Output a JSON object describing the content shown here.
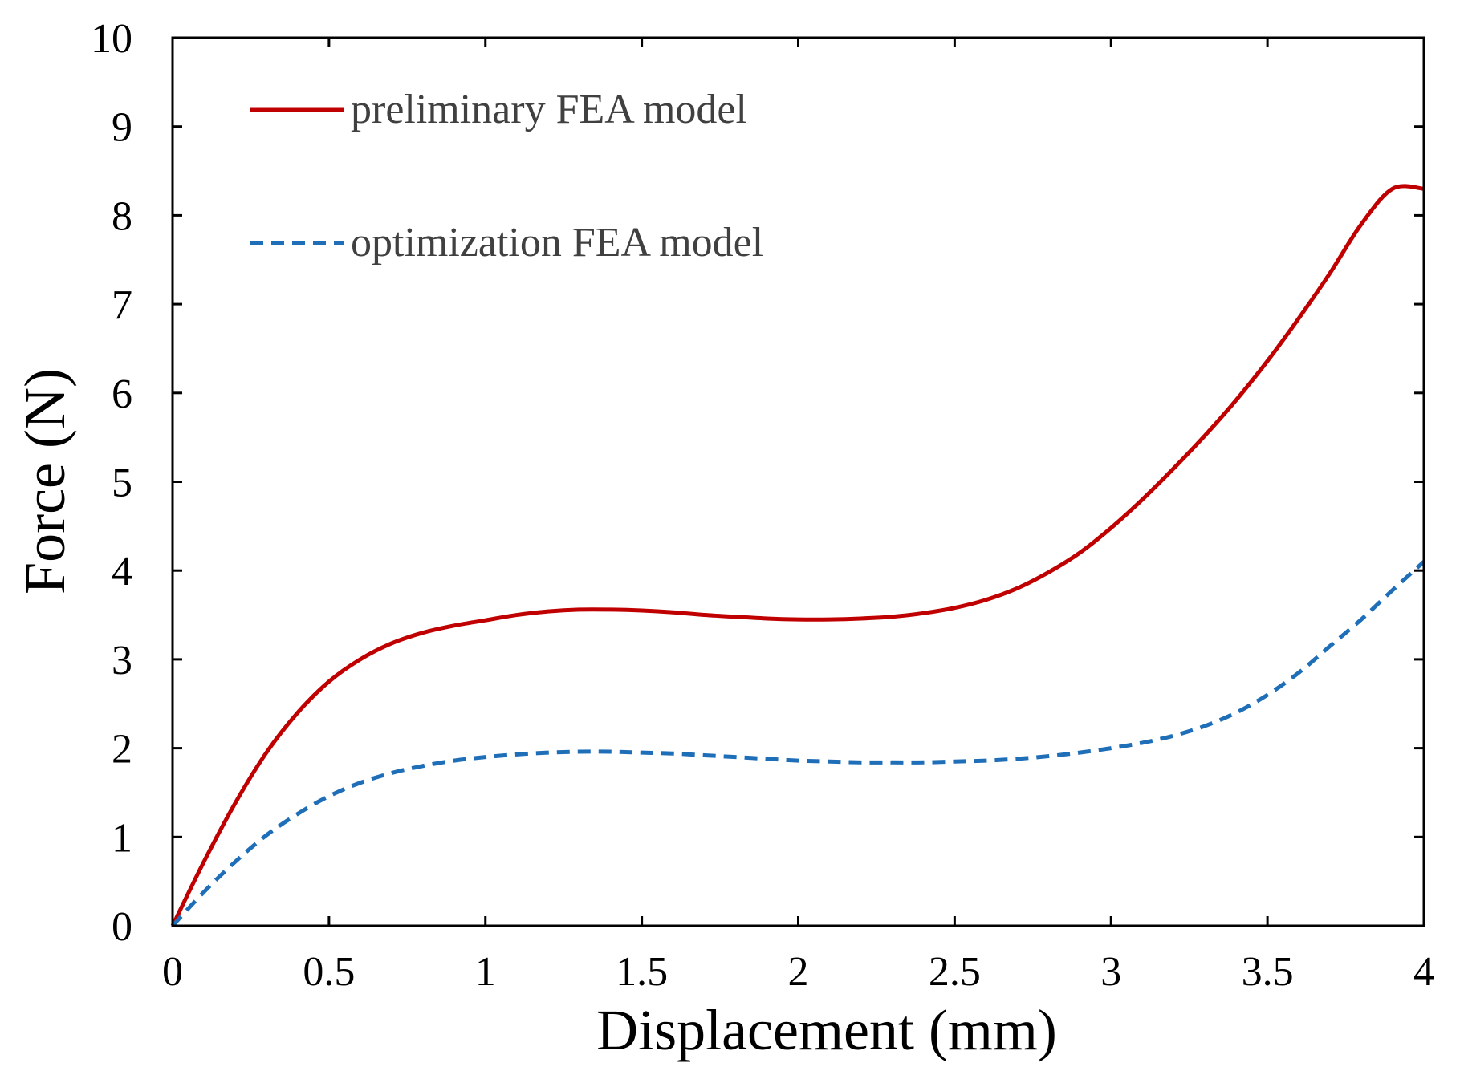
{
  "chart_data": {
    "type": "line",
    "title": "",
    "xlabel": "Displacement (mm)",
    "ylabel": "Force (N)",
    "xlim": [
      0,
      4
    ],
    "ylim": [
      0,
      10
    ],
    "xticks": [
      0,
      0.5,
      1,
      1.5,
      2,
      2.5,
      3,
      3.5,
      4
    ],
    "xtick_labels": [
      "0",
      "0.5",
      "1",
      "1.5",
      "2",
      "2.5",
      "3",
      "3.5",
      "4"
    ],
    "yticks": [
      0,
      1,
      2,
      3,
      4,
      5,
      6,
      7,
      8,
      9,
      10
    ],
    "ytick_labels": [
      "0",
      "1",
      "2",
      "3",
      "4",
      "5",
      "6",
      "7",
      "8",
      "9",
      "10"
    ],
    "grid": false,
    "legend_position": "top-left",
    "series": [
      {
        "name": "preliminary FEA model",
        "color": "#C00000",
        "style": "solid",
        "x": [
          0,
          0.1,
          0.2,
          0.3,
          0.4,
          0.5,
          0.6,
          0.7,
          0.8,
          0.9,
          1.0,
          1.1,
          1.2,
          1.3,
          1.4,
          1.5,
          1.6,
          1.7,
          1.8,
          1.9,
          2.0,
          2.1,
          2.2,
          2.3,
          2.4,
          2.5,
          2.6,
          2.7,
          2.8,
          2.9,
          3.0,
          3.1,
          3.2,
          3.3,
          3.4,
          3.5,
          3.6,
          3.7,
          3.8,
          3.9,
          4.0
        ],
        "y": [
          0,
          0.72,
          1.38,
          1.95,
          2.4,
          2.75,
          3.0,
          3.18,
          3.3,
          3.38,
          3.44,
          3.5,
          3.54,
          3.56,
          3.56,
          3.55,
          3.53,
          3.5,
          3.48,
          3.46,
          3.45,
          3.45,
          3.46,
          3.48,
          3.52,
          3.58,
          3.67,
          3.8,
          3.98,
          4.2,
          4.48,
          4.8,
          5.15,
          5.52,
          5.92,
          6.36,
          6.84,
          7.35,
          7.9,
          8.3,
          8.3
        ]
      },
      {
        "name": "optimization FEA model",
        "color": "#1F6EB8",
        "style": "dashed",
        "x": [
          0,
          0.1,
          0.2,
          0.3,
          0.4,
          0.5,
          0.6,
          0.7,
          0.8,
          0.9,
          1.0,
          1.1,
          1.2,
          1.3,
          1.4,
          1.5,
          1.6,
          1.7,
          1.8,
          1.9,
          2.0,
          2.1,
          2.2,
          2.3,
          2.4,
          2.5,
          2.6,
          2.7,
          2.8,
          2.9,
          3.0,
          3.1,
          3.2,
          3.3,
          3.4,
          3.5,
          3.6,
          3.7,
          3.8,
          3.9,
          4.0
        ],
        "y": [
          0,
          0.38,
          0.72,
          1.02,
          1.26,
          1.46,
          1.61,
          1.72,
          1.8,
          1.86,
          1.9,
          1.93,
          1.95,
          1.96,
          1.96,
          1.95,
          1.94,
          1.92,
          1.9,
          1.88,
          1.86,
          1.85,
          1.84,
          1.84,
          1.84,
          1.85,
          1.86,
          1.88,
          1.91,
          1.95,
          2.0,
          2.06,
          2.14,
          2.25,
          2.4,
          2.6,
          2.85,
          3.15,
          3.45,
          3.78,
          4.1
        ]
      }
    ]
  }
}
